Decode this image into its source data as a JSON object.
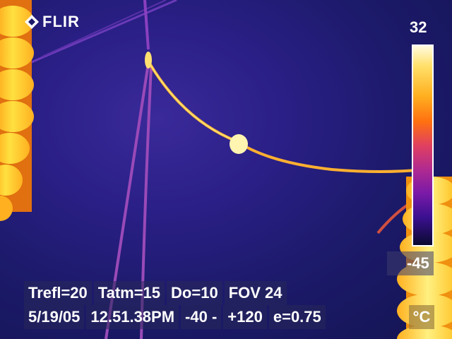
{
  "brand": {
    "name": "FLIR",
    "logo_icon": "flir-diamond-icon"
  },
  "scale": {
    "max": "32",
    "min": "-45",
    "unit": "°C"
  },
  "params": [
    {
      "label": "Trefl=20"
    },
    {
      "label": "Tatm=15"
    },
    {
      "label": "Do=10"
    },
    {
      "label": "FOV 24"
    }
  ],
  "info": {
    "date": "5/19/05",
    "time": "12.51.38PM",
    "range_low": "-40 -",
    "range_high": "+120",
    "emissivity": "e=0.75"
  },
  "colors": {
    "background": "#1c1a6a",
    "hot": "#ffd21f",
    "hottest": "#fffbe0"
  }
}
